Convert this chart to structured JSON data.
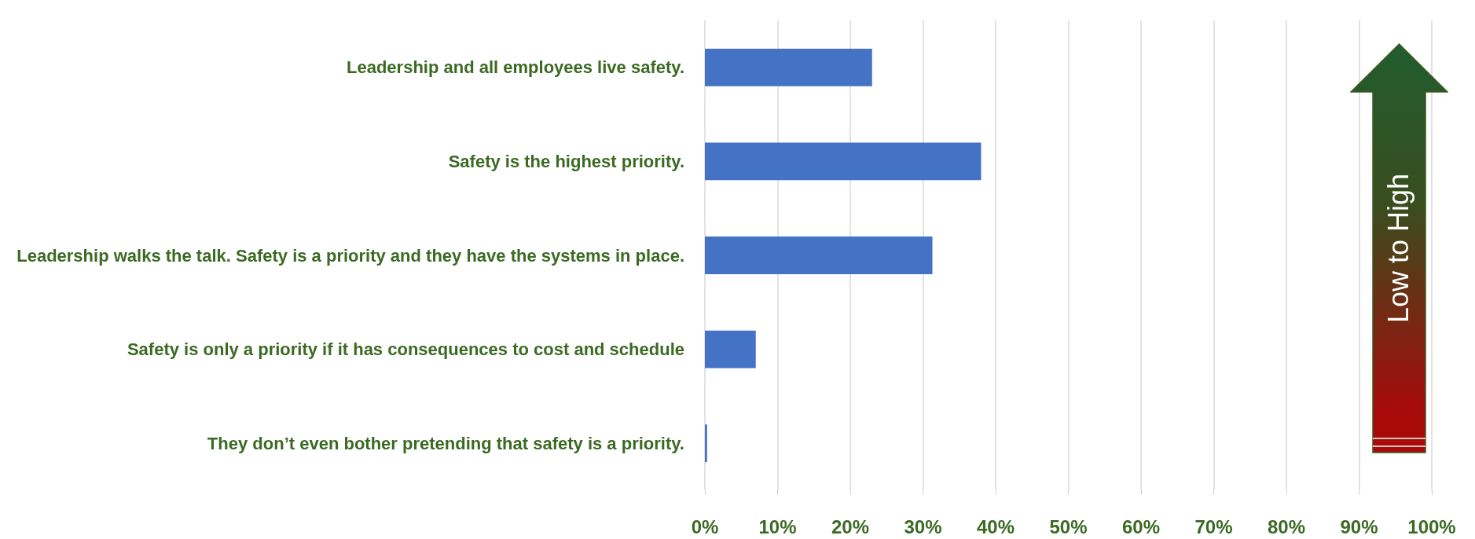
{
  "chart_data": {
    "type": "bar",
    "orientation": "horizontal",
    "categories": [
      "Leadership and all employees live safety.",
      "Safety is the highest priority.",
      "Leadership walks the talk. Safety is a priority and they have the systems in place.",
      "Safety is only a priority if it has consequences to cost and schedule",
      "They don’t even bother pretending that safety is a priority."
    ],
    "values": [
      23,
      38,
      31.3,
      7,
      0.3
    ],
    "color": "#4472c4",
    "xlim": [
      0,
      100
    ],
    "xticks": [
      {
        "value": 0,
        "label": "0%"
      },
      {
        "value": 10,
        "label": "10%"
      },
      {
        "value": 20,
        "label": "20%"
      },
      {
        "value": 30,
        "label": "30%"
      },
      {
        "value": 40,
        "label": "40%"
      },
      {
        "value": 50,
        "label": "50%"
      },
      {
        "value": 60,
        "label": "60%"
      },
      {
        "value": 70,
        "label": "70%"
      },
      {
        "value": 80,
        "label": "80%"
      },
      {
        "value": 90,
        "label": "90%"
      },
      {
        "value": 100,
        "label": "100%"
      }
    ],
    "grid": "x",
    "annotations": [
      "Low to High"
    ]
  }
}
